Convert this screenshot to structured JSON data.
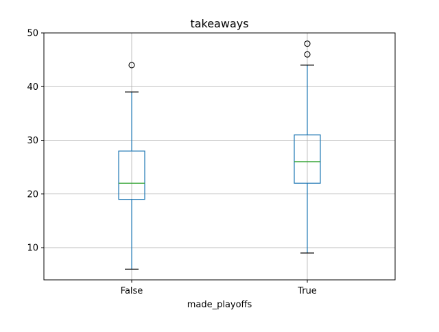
{
  "chart_data": {
    "type": "box",
    "title": "takeaways",
    "xlabel": "made_playoffs",
    "ylabel": "",
    "categories": [
      "False",
      "True"
    ],
    "ylim": [
      4,
      50
    ],
    "yticks": [
      10,
      20,
      30,
      40,
      50
    ],
    "grid": true,
    "boxes": [
      {
        "category": "False",
        "whisker_low": 6,
        "q1": 19,
        "median": 22,
        "q3": 28,
        "whisker_high": 39,
        "outliers": [
          44
        ]
      },
      {
        "category": "True",
        "whisker_low": 9,
        "q1": 22,
        "median": 26,
        "q3": 31,
        "whisker_high": 44,
        "outliers": [
          46,
          48
        ]
      }
    ],
    "colors": {
      "box": "#1f77b4",
      "median": "#2ca02c",
      "whisker_cap": "#000000",
      "grid": "#b0b0b0",
      "frame": "#000000"
    }
  }
}
